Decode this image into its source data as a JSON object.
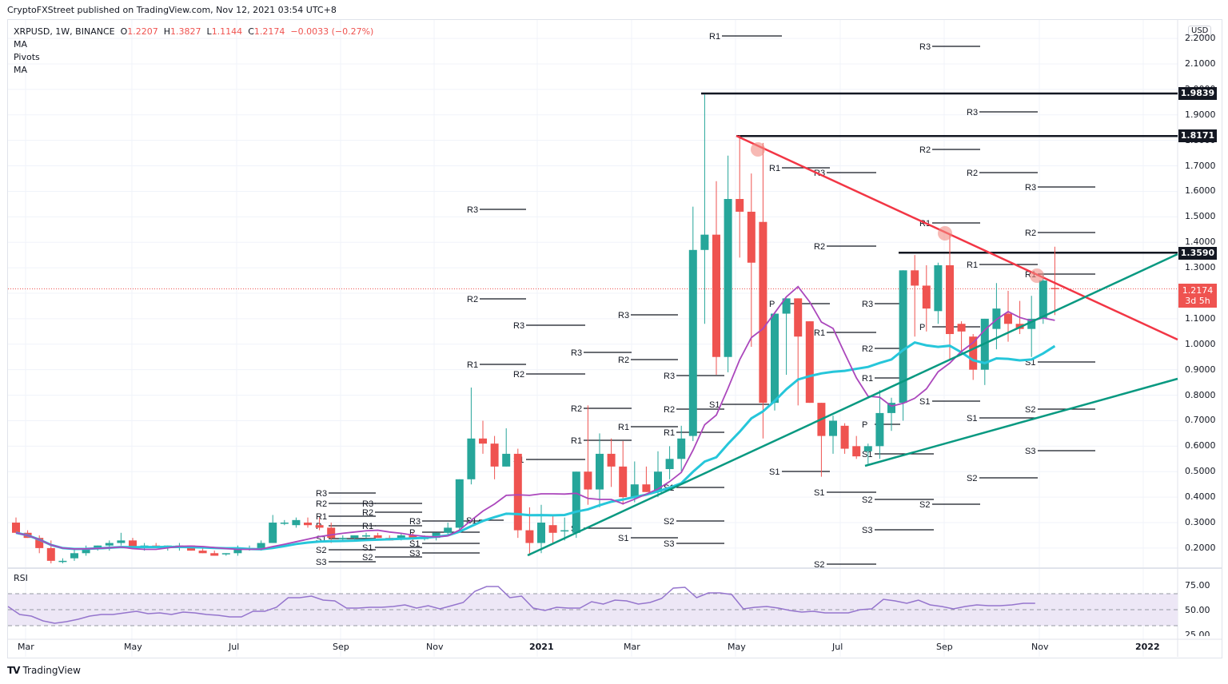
{
  "header": {
    "published": "CryptoFXStreet published on TradingView.com, Nov 12, 2021 03:54 UTC+8"
  },
  "legend": {
    "symbol": "XRPUSD, 1W, BINANCE",
    "open_label": "O",
    "open": "1.2207",
    "high_label": "H",
    "high": "1.3827",
    "low_label": "L",
    "low": "1.1144",
    "close_label": "C",
    "close": "1.2174",
    "change": "−0.0033 (−0.27%)",
    "indicators": [
      "MA",
      "Pivots",
      "MA"
    ]
  },
  "price_axis": {
    "currency": "USD",
    "ticks": [
      "2.2000",
      "2.1000",
      "2.0000",
      "1.9000",
      "1.8000",
      "1.7000",
      "1.6000",
      "1.5000",
      "1.4000",
      "1.3000",
      "1.2000",
      "1.1000",
      "1.0000",
      "0.9000",
      "0.8000",
      "0.7000",
      "0.6000",
      "0.5000",
      "0.4000",
      "0.3000",
      "0.2000"
    ],
    "tags": [
      {
        "label": "1.9839"
      },
      {
        "label": "1.8171"
      },
      {
        "label": "1.3590"
      }
    ],
    "current": {
      "price": "1.2174",
      "countdown": "3d 5h"
    }
  },
  "rsi": {
    "title": "RSI",
    "ticks": [
      "75.00",
      "50.00",
      "25.00"
    ]
  },
  "time_axis": {
    "labels": [
      "Mar",
      "May",
      "Jul",
      "Sep",
      "Nov",
      "2021",
      "Mar",
      "May",
      "Jul",
      "Sep",
      "Nov",
      "2022"
    ]
  },
  "footer": {
    "brand": "TradingView",
    "logo": "TV"
  },
  "colors": {
    "up": "#26a69a",
    "down": "#ef5350",
    "ma_fast": "#ab47bc",
    "ma_slow": "#26c6da",
    "trend_red": "#f23645",
    "trend_green": "#089981",
    "rsi_line": "#9575cd",
    "rsi_band": "#ede7f6"
  },
  "chart_data": {
    "type": "candlestick",
    "title": "XRPUSD, 1W, BINANCE",
    "xlabel": "",
    "ylabel": "USD",
    "ylim": [
      0.15,
      2.25
    ],
    "grid": true,
    "horizontal_levels": [
      {
        "price": 1.9839,
        "label": "1.9839"
      },
      {
        "price": 1.8171,
        "label": "1.8171"
      },
      {
        "price": 1.359,
        "label": "1.3590"
      }
    ],
    "trendlines": [
      {
        "name": "descending resistance",
        "color": "red",
        "from": {
          "date": "2021-05",
          "price": 1.82
        },
        "to": {
          "date": "2022-01",
          "price": 1.02
        }
      },
      {
        "name": "ascending support 1",
        "color": "green",
        "from": {
          "date": "2020-12",
          "price": 0.17
        },
        "to": {
          "date": "2022-01",
          "price": 1.36
        }
      },
      {
        "name": "ascending support 2",
        "color": "green",
        "from": {
          "date": "2021-07",
          "price": 0.52
        },
        "to": {
          "date": "2022-01",
          "price": 0.87
        }
      }
    ],
    "annotations": [
      "touch point May 2021 ~1.77",
      "touch point Aug 2021 ~1.43",
      "touch point Nov 2021 ~1.27"
    ],
    "candles": [
      {
        "o": 0.3,
        "h": 0.32,
        "l": 0.26,
        "c": 0.26
      },
      {
        "o": 0.26,
        "h": 0.27,
        "l": 0.24,
        "c": 0.24
      },
      {
        "o": 0.24,
        "h": 0.25,
        "l": 0.18,
        "c": 0.2
      },
      {
        "o": 0.2,
        "h": 0.23,
        "l": 0.14,
        "c": 0.15
      },
      {
        "o": 0.15,
        "h": 0.16,
        "l": 0.14,
        "c": 0.15
      },
      {
        "o": 0.16,
        "h": 0.2,
        "l": 0.15,
        "c": 0.18
      },
      {
        "o": 0.18,
        "h": 0.21,
        "l": 0.17,
        "c": 0.2
      },
      {
        "o": 0.2,
        "h": 0.21,
        "l": 0.19,
        "c": 0.21
      },
      {
        "o": 0.21,
        "h": 0.23,
        "l": 0.19,
        "c": 0.22
      },
      {
        "o": 0.22,
        "h": 0.26,
        "l": 0.21,
        "c": 0.23
      },
      {
        "o": 0.23,
        "h": 0.24,
        "l": 0.2,
        "c": 0.2
      },
      {
        "o": 0.2,
        "h": 0.22,
        "l": 0.19,
        "c": 0.21
      },
      {
        "o": 0.21,
        "h": 0.22,
        "l": 0.2,
        "c": 0.2
      },
      {
        "o": 0.2,
        "h": 0.21,
        "l": 0.19,
        "c": 0.21
      },
      {
        "o": 0.2,
        "h": 0.22,
        "l": 0.19,
        "c": 0.21
      },
      {
        "o": 0.21,
        "h": 0.2,
        "l": 0.19,
        "c": 0.19
      },
      {
        "o": 0.19,
        "h": 0.2,
        "l": 0.18,
        "c": 0.18
      },
      {
        "o": 0.18,
        "h": 0.19,
        "l": 0.17,
        "c": 0.17
      },
      {
        "o": 0.18,
        "h": 0.18,
        "l": 0.17,
        "c": 0.18
      },
      {
        "o": 0.18,
        "h": 0.21,
        "l": 0.17,
        "c": 0.2
      },
      {
        "o": 0.2,
        "h": 0.21,
        "l": 0.19,
        "c": 0.2
      },
      {
        "o": 0.2,
        "h": 0.23,
        "l": 0.19,
        "c": 0.22
      },
      {
        "o": 0.22,
        "h": 0.33,
        "l": 0.22,
        "c": 0.3
      },
      {
        "o": 0.3,
        "h": 0.31,
        "l": 0.29,
        "c": 0.3
      },
      {
        "o": 0.29,
        "h": 0.32,
        "l": 0.28,
        "c": 0.31
      },
      {
        "o": 0.3,
        "h": 0.32,
        "l": 0.28,
        "c": 0.29
      },
      {
        "o": 0.29,
        "h": 0.32,
        "l": 0.27,
        "c": 0.28
      },
      {
        "o": 0.28,
        "h": 0.3,
        "l": 0.22,
        "c": 0.24
      },
      {
        "o": 0.24,
        "h": 0.25,
        "l": 0.23,
        "c": 0.24
      },
      {
        "o": 0.24,
        "h": 0.25,
        "l": 0.23,
        "c": 0.25
      },
      {
        "o": 0.25,
        "h": 0.26,
        "l": 0.24,
        "c": 0.25
      },
      {
        "o": 0.25,
        "h": 0.26,
        "l": 0.24,
        "c": 0.24
      },
      {
        "o": 0.24,
        "h": 0.25,
        "l": 0.23,
        "c": 0.23
      },
      {
        "o": 0.24,
        "h": 0.26,
        "l": 0.23,
        "c": 0.25
      },
      {
        "o": 0.25,
        "h": 0.26,
        "l": 0.23,
        "c": 0.24
      },
      {
        "o": 0.24,
        "h": 0.25,
        "l": 0.23,
        "c": 0.24
      },
      {
        "o": 0.24,
        "h": 0.26,
        "l": 0.23,
        "c": 0.26
      },
      {
        "o": 0.26,
        "h": 0.3,
        "l": 0.25,
        "c": 0.28
      },
      {
        "o": 0.28,
        "h": 0.45,
        "l": 0.27,
        "c": 0.47
      },
      {
        "o": 0.47,
        "h": 0.83,
        "l": 0.45,
        "c": 0.63
      },
      {
        "o": 0.63,
        "h": 0.7,
        "l": 0.57,
        "c": 0.61
      },
      {
        "o": 0.61,
        "h": 0.64,
        "l": 0.47,
        "c": 0.52
      },
      {
        "o": 0.52,
        "h": 0.67,
        "l": 0.52,
        "c": 0.57
      },
      {
        "o": 0.57,
        "h": 0.59,
        "l": 0.24,
        "c": 0.27
      },
      {
        "o": 0.27,
        "h": 0.36,
        "l": 0.17,
        "c": 0.22
      },
      {
        "o": 0.22,
        "h": 0.37,
        "l": 0.18,
        "c": 0.3
      },
      {
        "o": 0.29,
        "h": 0.33,
        "l": 0.22,
        "c": 0.26
      },
      {
        "o": 0.27,
        "h": 0.32,
        "l": 0.23,
        "c": 0.27
      },
      {
        "o": 0.26,
        "h": 0.49,
        "l": 0.24,
        "c": 0.5
      },
      {
        "o": 0.5,
        "h": 0.76,
        "l": 0.37,
        "c": 0.43
      },
      {
        "o": 0.43,
        "h": 0.65,
        "l": 0.36,
        "c": 0.57
      },
      {
        "o": 0.57,
        "h": 0.63,
        "l": 0.44,
        "c": 0.52
      },
      {
        "o": 0.52,
        "h": 0.62,
        "l": 0.37,
        "c": 0.4
      },
      {
        "o": 0.4,
        "h": 0.54,
        "l": 0.38,
        "c": 0.45
      },
      {
        "o": 0.45,
        "h": 0.52,
        "l": 0.42,
        "c": 0.42
      },
      {
        "o": 0.42,
        "h": 0.58,
        "l": 0.4,
        "c": 0.5
      },
      {
        "o": 0.51,
        "h": 0.6,
        "l": 0.47,
        "c": 0.55
      },
      {
        "o": 0.55,
        "h": 0.68,
        "l": 0.5,
        "c": 0.63
      },
      {
        "o": 0.64,
        "h": 1.54,
        "l": 0.62,
        "c": 1.37
      },
      {
        "o": 1.37,
        "h": 1.98,
        "l": 1.08,
        "c": 1.43
      },
      {
        "o": 1.43,
        "h": 1.64,
        "l": 0.88,
        "c": 0.95
      },
      {
        "o": 0.95,
        "h": 1.74,
        "l": 0.89,
        "c": 1.57
      },
      {
        "o": 1.57,
        "h": 1.82,
        "l": 1.34,
        "c": 1.52
      },
      {
        "o": 1.52,
        "h": 1.67,
        "l": 0.99,
        "c": 1.32
      },
      {
        "o": 1.48,
        "h": 1.79,
        "l": 0.63,
        "c": 0.77
      },
      {
        "o": 0.77,
        "h": 1.03,
        "l": 0.74,
        "c": 1.12
      },
      {
        "o": 1.12,
        "h": 1.09,
        "l": 0.88,
        "c": 1.18
      },
      {
        "o": 1.18,
        "h": 1.05,
        "l": 0.76,
        "c": 1.03
      },
      {
        "o": 1.09,
        "h": 1.0,
        "l": 0.79,
        "c": 0.77
      },
      {
        "o": 0.77,
        "h": 0.74,
        "l": 0.48,
        "c": 0.64
      },
      {
        "o": 0.64,
        "h": 0.72,
        "l": 0.57,
        "c": 0.7
      },
      {
        "o": 0.68,
        "h": 0.69,
        "l": 0.57,
        "c": 0.59
      },
      {
        "o": 0.6,
        "h": 0.64,
        "l": 0.55,
        "c": 0.56
      },
      {
        "o": 0.58,
        "h": 0.61,
        "l": 0.53,
        "c": 0.6
      },
      {
        "o": 0.6,
        "h": 0.82,
        "l": 0.55,
        "c": 0.73
      },
      {
        "o": 0.73,
        "h": 0.79,
        "l": 0.66,
        "c": 0.77
      },
      {
        "o": 0.77,
        "h": 0.85,
        "l": 0.7,
        "c": 1.29
      },
      {
        "o": 1.29,
        "h": 1.35,
        "l": 1.03,
        "c": 1.23
      },
      {
        "o": 1.23,
        "h": 1.31,
        "l": 1.05,
        "c": 1.14
      },
      {
        "o": 1.13,
        "h": 1.32,
        "l": 1.08,
        "c": 1.31
      },
      {
        "o": 1.31,
        "h": 1.43,
        "l": 0.94,
        "c": 1.04
      },
      {
        "o": 1.08,
        "h": 1.09,
        "l": 0.97,
        "c": 1.05
      },
      {
        "o": 1.03,
        "h": 1.04,
        "l": 0.86,
        "c": 0.9
      },
      {
        "o": 0.9,
        "h": 1.0,
        "l": 0.84,
        "c": 1.1
      },
      {
        "o": 1.06,
        "h": 1.24,
        "l": 0.98,
        "c": 1.14
      },
      {
        "o": 1.12,
        "h": 1.21,
        "l": 1.01,
        "c": 1.08
      },
      {
        "o": 1.08,
        "h": 1.17,
        "l": 1.04,
        "c": 1.06
      },
      {
        "o": 1.06,
        "h": 1.19,
        "l": 0.95,
        "c": 1.1
      },
      {
        "o": 1.1,
        "h": 1.28,
        "l": 1.08,
        "c": 1.25
      },
      {
        "o": 1.2207,
        "h": 1.3827,
        "l": 1.1144,
        "c": 1.2174
      }
    ],
    "pivot_labels": [
      "R3",
      "R2",
      "R1",
      "P",
      "S1",
      "S2",
      "S3"
    ],
    "rsi_series_approx": [
      54,
      44,
      42,
      36,
      33,
      35,
      38,
      42,
      44,
      44,
      46,
      48,
      45,
      46,
      44,
      47,
      46,
      44,
      43,
      41,
      41,
      48,
      48,
      53,
      65,
      65,
      67,
      62,
      61,
      52,
      52,
      53,
      53,
      54,
      56,
      52,
      55,
      51,
      55,
      59,
      73,
      79,
      79,
      65,
      67,
      52,
      49,
      53,
      52,
      52,
      60,
      57,
      62,
      61,
      57,
      59,
      64,
      77,
      78,
      65,
      71,
      71,
      69,
      51,
      53,
      54,
      52,
      49,
      47,
      48,
      46,
      46,
      46,
      50,
      51,
      63,
      61,
      58,
      62,
      56,
      54,
      51,
      54,
      56,
      55,
      55,
      56,
      58,
      58
    ]
  }
}
